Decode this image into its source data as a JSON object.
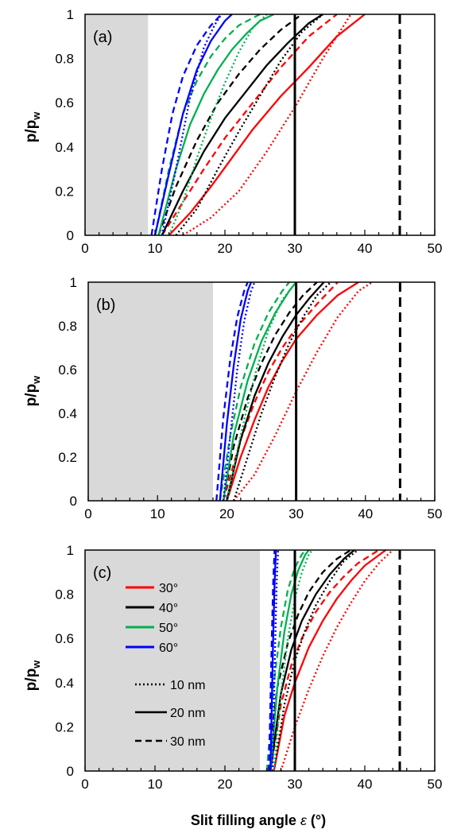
{
  "figure": {
    "x_label_text": "Slit filling angle",
    "x_label_symbol": "ε",
    "x_label_unit": "(°)",
    "y_label_main": "p/p",
    "y_label_sub": "w"
  },
  "legend": {
    "angles": [
      {
        "label": "30°",
        "color": "#ff0000"
      },
      {
        "label": "40°",
        "color": "#000000"
      },
      {
        "label": "50°",
        "color": "#00b050"
      },
      {
        "label": "60°",
        "color": "#0000ff"
      }
    ],
    "widths": [
      {
        "label": "10 nm",
        "style": "dotted"
      },
      {
        "label": "20 nm",
        "style": "solid"
      },
      {
        "label": "30 nm",
        "style": "dashed"
      }
    ]
  },
  "chart_data": [
    {
      "type": "line",
      "panel_label": "(a)",
      "xlim": [
        0,
        50
      ],
      "ylim": [
        0,
        1
      ],
      "xticks": [
        "0",
        "10",
        "20",
        "30",
        "40",
        "50"
      ],
      "yticks": [
        "0",
        "0.2",
        "0.4",
        "0.6",
        "0.8",
        "1"
      ],
      "shaded_region": [
        0,
        9
      ],
      "vlines": [
        {
          "x": 30,
          "style": "solid"
        },
        {
          "x": 45,
          "style": "dashed"
        }
      ],
      "series": [
        {
          "angle": "30°",
          "width": "10 nm",
          "style": "dotted",
          "color": "#ff0000",
          "x": [
            14,
            18,
            22,
            26,
            30,
            34,
            38
          ],
          "y": [
            0,
            0.08,
            0.2,
            0.38,
            0.58,
            0.8,
            1
          ]
        },
        {
          "angle": "30°",
          "width": "20 nm",
          "style": "solid",
          "color": "#ff0000",
          "x": [
            12,
            15,
            18,
            21,
            24,
            28,
            32,
            36,
            40
          ],
          "y": [
            0,
            0.1,
            0.22,
            0.35,
            0.48,
            0.63,
            0.76,
            0.9,
            1
          ]
        },
        {
          "angle": "30°",
          "width": "30 nm",
          "style": "dashed",
          "color": "#ff0000",
          "x": [
            11,
            14,
            17,
            20,
            24,
            28,
            32,
            36
          ],
          "y": [
            0,
            0.15,
            0.3,
            0.44,
            0.6,
            0.76,
            0.9,
            1
          ]
        },
        {
          "angle": "40°",
          "width": "10 nm",
          "style": "dotted",
          "color": "#000000",
          "x": [
            13,
            16,
            19,
            22,
            25,
            28,
            31,
            34
          ],
          "y": [
            0,
            0.12,
            0.3,
            0.47,
            0.63,
            0.79,
            0.92,
            1
          ]
        },
        {
          "angle": "40°",
          "width": "20 nm",
          "style": "solid",
          "color": "#000000",
          "x": [
            11,
            14,
            17,
            20,
            23,
            26,
            29,
            32,
            34
          ],
          "y": [
            0,
            0.2,
            0.38,
            0.53,
            0.65,
            0.77,
            0.87,
            0.96,
            1
          ]
        },
        {
          "angle": "40°",
          "width": "30 nm",
          "style": "dashed",
          "color": "#000000",
          "x": [
            10.5,
            13,
            16,
            19,
            22,
            25,
            28,
            31
          ],
          "y": [
            0,
            0.22,
            0.43,
            0.6,
            0.73,
            0.84,
            0.93,
            1
          ]
        },
        {
          "angle": "50°",
          "width": "10 nm",
          "style": "dotted",
          "color": "#00b050",
          "x": [
            12,
            14,
            16,
            18,
            20,
            22,
            24,
            26
          ],
          "y": [
            0,
            0.15,
            0.35,
            0.53,
            0.69,
            0.83,
            0.94,
            1
          ]
        },
        {
          "angle": "50°",
          "width": "20 nm",
          "style": "solid",
          "color": "#00b050",
          "x": [
            10.5,
            13,
            15,
            17,
            19,
            21,
            23,
            25,
            27
          ],
          "y": [
            0,
            0.3,
            0.5,
            0.64,
            0.75,
            0.84,
            0.91,
            0.97,
            1
          ]
        },
        {
          "angle": "50°",
          "width": "30 nm",
          "style": "dashed",
          "color": "#00b050",
          "x": [
            10,
            12,
            14,
            16,
            18,
            20,
            22,
            25
          ],
          "y": [
            0,
            0.3,
            0.55,
            0.7,
            0.81,
            0.89,
            0.95,
            1
          ]
        },
        {
          "angle": "60°",
          "width": "10 nm",
          "style": "dotted",
          "color": "#0000ff",
          "x": [
            11,
            13,
            15,
            17,
            18.5,
            19.5
          ],
          "y": [
            0,
            0.3,
            0.62,
            0.85,
            0.95,
            1
          ]
        },
        {
          "angle": "60°",
          "width": "20 nm",
          "style": "solid",
          "color": "#0000ff",
          "x": [
            10,
            12,
            14,
            16,
            18,
            20,
            21
          ],
          "y": [
            0,
            0.28,
            0.55,
            0.75,
            0.88,
            0.97,
            1
          ]
        },
        {
          "angle": "60°",
          "width": "30 nm",
          "style": "dashed",
          "color": "#0000ff",
          "x": [
            9.5,
            11,
            12.5,
            14,
            16,
            18,
            19.5
          ],
          "y": [
            0,
            0.3,
            0.55,
            0.72,
            0.86,
            0.95,
            1
          ]
        }
      ]
    },
    {
      "type": "line",
      "panel_label": "(b)",
      "xlim": [
        0,
        50
      ],
      "ylim": [
        0,
        1
      ],
      "xticks": [
        "0",
        "10",
        "20",
        "30",
        "40",
        "50"
      ],
      "yticks": [
        "0",
        "0.2",
        "0.4",
        "0.6",
        "0.8",
        "1"
      ],
      "shaded_region": [
        0,
        18
      ],
      "vlines": [
        {
          "x": 30,
          "style": "solid"
        },
        {
          "x": 45,
          "style": "dashed"
        }
      ],
      "series": [
        {
          "angle": "30°",
          "width": "10 nm",
          "style": "dotted",
          "color": "#ff0000",
          "x": [
            21,
            24,
            27,
            30,
            33,
            36,
            39,
            41
          ],
          "y": [
            0,
            0.12,
            0.3,
            0.5,
            0.68,
            0.84,
            0.96,
            1
          ]
        },
        {
          "angle": "30°",
          "width": "20 nm",
          "style": "solid",
          "color": "#ff0000",
          "x": [
            20,
            22,
            24,
            26,
            28,
            30,
            33,
            36,
            39
          ],
          "y": [
            0,
            0.2,
            0.37,
            0.52,
            0.64,
            0.74,
            0.85,
            0.94,
            1
          ]
        },
        {
          "angle": "30°",
          "width": "30 nm",
          "style": "dashed",
          "color": "#ff0000",
          "x": [
            19.5,
            22,
            24,
            26,
            28,
            30,
            33,
            36
          ],
          "y": [
            0,
            0.28,
            0.45,
            0.59,
            0.7,
            0.79,
            0.9,
            1
          ]
        },
        {
          "angle": "40°",
          "width": "10 nm",
          "style": "dotted",
          "color": "#000000",
          "x": [
            21,
            23,
            25,
            27,
            29,
            31,
            33,
            35
          ],
          "y": [
            0,
            0.2,
            0.4,
            0.57,
            0.72,
            0.84,
            0.94,
            1
          ]
        },
        {
          "angle": "40°",
          "width": "20 nm",
          "style": "solid",
          "color": "#000000",
          "x": [
            20,
            22,
            24,
            26,
            28,
            30,
            32,
            34
          ],
          "y": [
            0,
            0.28,
            0.48,
            0.63,
            0.75,
            0.85,
            0.93,
            1
          ]
        },
        {
          "angle": "40°",
          "width": "30 nm",
          "style": "dashed",
          "color": "#000000",
          "x": [
            19.5,
            21,
            23,
            25,
            27,
            29,
            31,
            33
          ],
          "y": [
            0,
            0.25,
            0.47,
            0.63,
            0.76,
            0.86,
            0.94,
            1
          ]
        },
        {
          "angle": "50°",
          "width": "10 nm",
          "style": "dotted",
          "color": "#00b050",
          "x": [
            20,
            22,
            24,
            26,
            28,
            30
          ],
          "y": [
            0,
            0.3,
            0.57,
            0.78,
            0.92,
            1
          ]
        },
        {
          "angle": "50°",
          "width": "20 nm",
          "style": "solid",
          "color": "#00b050",
          "x": [
            19.5,
            21,
            23,
            25,
            27,
            29,
            30
          ],
          "y": [
            0,
            0.3,
            0.55,
            0.73,
            0.86,
            0.96,
            1
          ]
        },
        {
          "angle": "50°",
          "width": "30 nm",
          "style": "dashed",
          "color": "#00b050",
          "x": [
            19,
            20.5,
            22,
            24,
            26,
            28,
            29
          ],
          "y": [
            0,
            0.3,
            0.52,
            0.72,
            0.86,
            0.96,
            1
          ]
        },
        {
          "angle": "60°",
          "width": "10 nm",
          "style": "dotted",
          "color": "#0000ff",
          "x": [
            19.5,
            20.5,
            21.5,
            22.5,
            23.5,
            24
          ],
          "y": [
            0,
            0.3,
            0.6,
            0.82,
            0.96,
            1
          ]
        },
        {
          "angle": "60°",
          "width": "20 nm",
          "style": "solid",
          "color": "#0000ff",
          "x": [
            19,
            20,
            21,
            22,
            23,
            23.5
          ],
          "y": [
            0,
            0.35,
            0.62,
            0.83,
            0.96,
            1
          ]
        },
        {
          "angle": "60°",
          "width": "30 nm",
          "style": "dashed",
          "color": "#0000ff",
          "x": [
            18.5,
            19.5,
            20.5,
            21.5,
            22.5,
            23
          ],
          "y": [
            0,
            0.38,
            0.65,
            0.84,
            0.96,
            1
          ]
        }
      ]
    },
    {
      "type": "line",
      "panel_label": "(c)",
      "xlim": [
        0,
        50
      ],
      "ylim": [
        0,
        1
      ],
      "xticks": [
        "0",
        "10",
        "20",
        "30",
        "40",
        "50"
      ],
      "yticks": [
        "0",
        "0.2",
        "0.4",
        "0.6",
        "0.8",
        "1"
      ],
      "shaded_region": [
        0,
        25
      ],
      "vlines": [
        {
          "x": 30,
          "style": "solid"
        },
        {
          "x": 45,
          "style": "dashed"
        }
      ],
      "series": [
        {
          "angle": "30°",
          "width": "10 nm",
          "style": "dotted",
          "color": "#ff0000",
          "x": [
            28,
            30,
            32,
            34,
            36,
            38,
            40,
            42,
            44
          ],
          "y": [
            0,
            0.2,
            0.37,
            0.52,
            0.65,
            0.76,
            0.86,
            0.94,
            1
          ]
        },
        {
          "angle": "30°",
          "width": "20 nm",
          "style": "solid",
          "color": "#ff0000",
          "x": [
            27,
            28.5,
            30,
            32,
            34,
            36,
            38,
            40,
            43
          ],
          "y": [
            0,
            0.25,
            0.4,
            0.56,
            0.68,
            0.78,
            0.86,
            0.93,
            1
          ]
        },
        {
          "angle": "30°",
          "width": "30 nm",
          "style": "dashed",
          "color": "#ff0000",
          "x": [
            26.5,
            28,
            29.5,
            31,
            33,
            35,
            37,
            39,
            42
          ],
          "y": [
            0,
            0.3,
            0.48,
            0.6,
            0.72,
            0.81,
            0.88,
            0.94,
            1
          ]
        },
        {
          "angle": "40°",
          "width": "10 nm",
          "style": "dotted",
          "color": "#000000",
          "x": [
            27,
            28.5,
            30,
            31.5,
            33,
            35,
            37,
            39
          ],
          "y": [
            0,
            0.3,
            0.5,
            0.64,
            0.75,
            0.86,
            0.95,
            1
          ]
        },
        {
          "angle": "40°",
          "width": "20 nm",
          "style": "solid",
          "color": "#000000",
          "x": [
            26.5,
            28,
            29.5,
            31,
            33,
            35,
            37,
            38.5
          ],
          "y": [
            0,
            0.35,
            0.55,
            0.68,
            0.8,
            0.89,
            0.96,
            1
          ]
        },
        {
          "angle": "40°",
          "width": "30 nm",
          "style": "dashed",
          "color": "#000000",
          "x": [
            26,
            27.5,
            29,
            30.5,
            32,
            34,
            36,
            38
          ],
          "y": [
            0,
            0.38,
            0.58,
            0.71,
            0.81,
            0.9,
            0.96,
            1
          ]
        },
        {
          "angle": "50°",
          "width": "10 nm",
          "style": "dotted",
          "color": "#00b050",
          "x": [
            27,
            28,
            29,
            30,
            31,
            32,
            32.5
          ],
          "y": [
            0,
            0.35,
            0.6,
            0.78,
            0.9,
            0.98,
            1
          ]
        },
        {
          "angle": "50°",
          "width": "20 nm",
          "style": "solid",
          "color": "#00b050",
          "x": [
            26.5,
            27.5,
            28.5,
            29.5,
            30.5,
            31.5,
            32
          ],
          "y": [
            0,
            0.38,
            0.63,
            0.8,
            0.91,
            0.98,
            1
          ]
        },
        {
          "angle": "50°",
          "width": "30 nm",
          "style": "dashed",
          "color": "#00b050",
          "x": [
            26,
            27,
            28,
            29,
            30,
            31,
            31.5
          ],
          "y": [
            0,
            0.4,
            0.65,
            0.82,
            0.92,
            0.98,
            1
          ]
        },
        {
          "angle": "60°",
          "width": "10 nm",
          "style": "dotted",
          "color": "#0000ff",
          "x": [
            26.8,
            27,
            27.2,
            27.4,
            27.6
          ],
          "y": [
            0,
            0.3,
            0.6,
            0.85,
            1
          ]
        },
        {
          "angle": "60°",
          "width": "20 nm",
          "style": "solid",
          "color": "#0000ff",
          "x": [
            26.5,
            26.7,
            26.9,
            27.1,
            27.3
          ],
          "y": [
            0,
            0.3,
            0.6,
            0.85,
            1
          ]
        },
        {
          "angle": "60°",
          "width": "30 nm",
          "style": "dashed",
          "color": "#0000ff",
          "x": [
            26.3,
            26.5,
            26.7,
            26.9,
            27.1
          ],
          "y": [
            0,
            0.3,
            0.6,
            0.85,
            1
          ]
        }
      ]
    }
  ]
}
